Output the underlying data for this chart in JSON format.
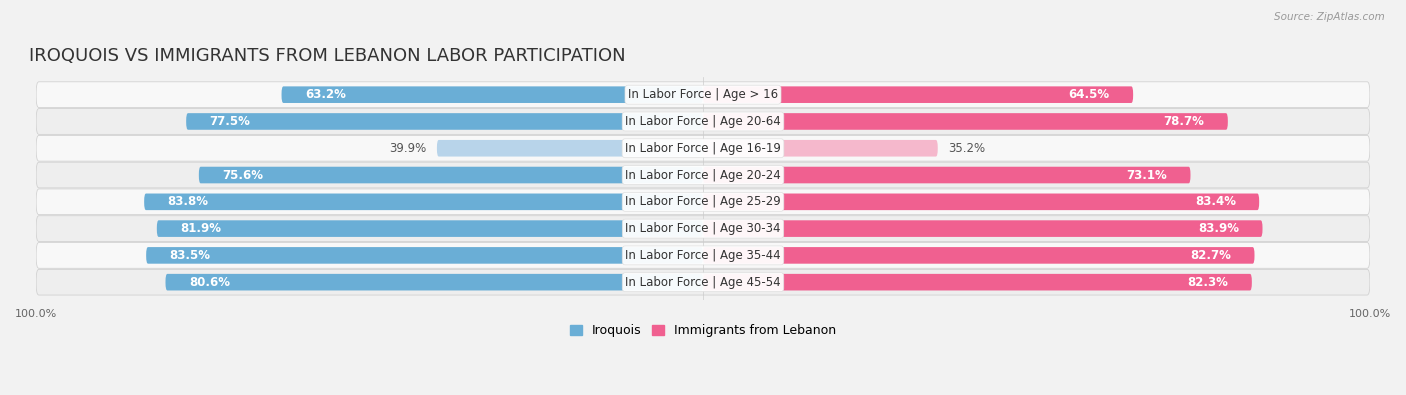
{
  "title": "IROQUOIS VS IMMIGRANTS FROM LEBANON LABOR PARTICIPATION",
  "source": "Source: ZipAtlas.com",
  "categories": [
    "In Labor Force | Age > 16",
    "In Labor Force | Age 20-64",
    "In Labor Force | Age 16-19",
    "In Labor Force | Age 20-24",
    "In Labor Force | Age 25-29",
    "In Labor Force | Age 30-34",
    "In Labor Force | Age 35-44",
    "In Labor Force | Age 45-54"
  ],
  "iroquois_values": [
    63.2,
    77.5,
    39.9,
    75.6,
    83.8,
    81.9,
    83.5,
    80.6
  ],
  "lebanon_values": [
    64.5,
    78.7,
    35.2,
    73.1,
    83.4,
    83.9,
    82.7,
    82.3
  ],
  "iroquois_color": "#6aaed6",
  "iroquois_light_color": "#b8d4ea",
  "lebanon_color": "#f06090",
  "lebanon_light_color": "#f5b8cc",
  "background_color": "#f2f2f2",
  "row_bg_light": "#f8f8f8",
  "row_bg_dark": "#eeeeee",
  "max_value": 100.0,
  "bar_height": 0.62,
  "title_fontsize": 13,
  "label_fontsize": 8.5,
  "value_fontsize": 8.5,
  "tick_fontsize": 8,
  "legend_fontsize": 9
}
